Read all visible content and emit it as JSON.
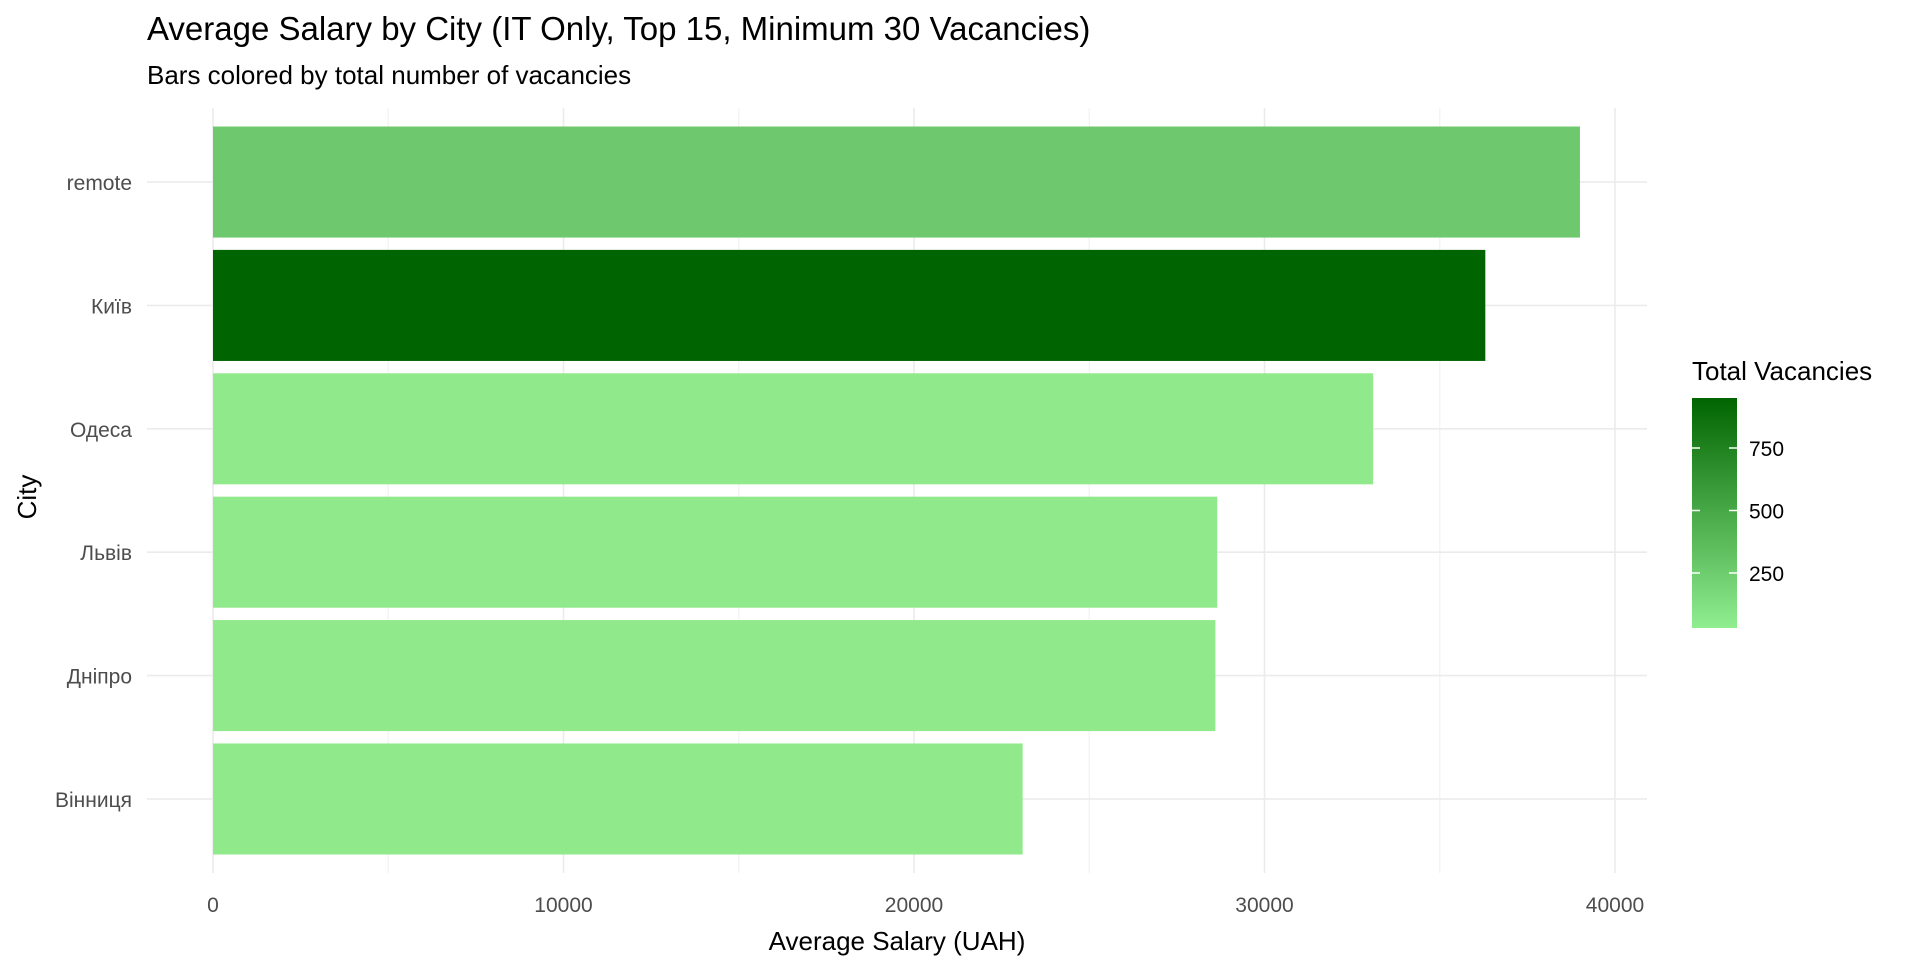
{
  "chart_data": {
    "type": "bar",
    "orientation": "horizontal",
    "title": "Average Salary by City (IT Only, Top 15, Minimum 30 Vacancies)",
    "subtitle": "Bars colored by total number of vacancies",
    "xlabel": "Average Salary (UAH)",
    "ylabel": "City",
    "xlim": [
      0,
      41000
    ],
    "x_ticks": [
      0,
      10000,
      20000,
      30000,
      40000
    ],
    "grid": true,
    "categories": [
      "remote",
      "Київ",
      "Одеса",
      "Львів",
      "Дніпро",
      "Вінниця"
    ],
    "values": [
      39000,
      36300,
      33100,
      28650,
      28600,
      23100
    ],
    "bar_colors": [
      "#6ec86e",
      "#006400",
      "#90ea8c",
      "#90ea8c",
      "#90ea8c",
      "#90ea8c"
    ],
    "legend": {
      "title": "Total Vacancies",
      "position": "right",
      "range": [
        30,
        950
      ],
      "ticks": [
        250,
        500,
        750
      ],
      "color_low": "#90ee90",
      "color_high": "#006400"
    }
  }
}
